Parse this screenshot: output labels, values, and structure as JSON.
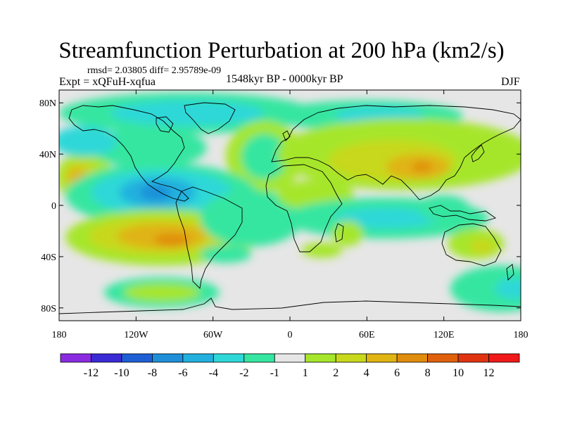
{
  "title": "Streamfunction Perturbation at 200 hPa (km2/s)",
  "stats": {
    "rmsd_line": "rmsd= 2.03805 diff= 2.95789e-09"
  },
  "experiment": "Expt = xQFuH-xqfua",
  "period": "1548kyr BP - 0000kyr BP",
  "season": "DJF",
  "axes": {
    "y_ticks": [
      {
        "label": "80N",
        "lat": 80
      },
      {
        "label": "40N",
        "lat": 40
      },
      {
        "label": "0",
        "lat": 0
      },
      {
        "label": "40S",
        "lat": -40
      },
      {
        "label": "80S",
        "lat": -80
      }
    ],
    "x_ticks": [
      {
        "label": "180",
        "lon": -180
      },
      {
        "label": "120W",
        "lon": -120
      },
      {
        "label": "60W",
        "lon": -60
      },
      {
        "label": "0",
        "lon": 0
      },
      {
        "label": "60E",
        "lon": 60
      },
      {
        "label": "120E",
        "lon": 120
      },
      {
        "label": "180",
        "lon": 180
      }
    ]
  },
  "colorbar": {
    "labels": [
      "-12",
      "-10",
      "-8",
      "-6",
      "-4",
      "-2",
      "-1",
      "1",
      "2",
      "4",
      "6",
      "8",
      "10",
      "12"
    ],
    "colors": [
      "#8a2be2",
      "#3a2ad6",
      "#1f5fd6",
      "#1e8fd8",
      "#22b0de",
      "#2fd8d8",
      "#35e6a0",
      "#e6e6e6",
      "#a6e62b",
      "#c8d81a",
      "#e0b412",
      "#e08c0c",
      "#e0600c",
      "#e03410",
      "#f01818"
    ]
  },
  "map_data": {
    "projection": "equirectangular",
    "lon_range": [
      -180,
      180
    ],
    "lat_range": [
      -90,
      90
    ],
    "background_color": "#e6e6e6",
    "fields": [
      {
        "color": "#a6e62b",
        "lon": -160,
        "lat": 22,
        "rlon": 22,
        "rlat": 20
      },
      {
        "color": "#c8d81a",
        "lon": -163,
        "lat": 22,
        "rlon": 14,
        "rlat": 13
      },
      {
        "color": "#e0b412",
        "lon": -166,
        "lat": 22,
        "rlon": 7,
        "rlat": 7
      },
      {
        "color": "#35e6a0",
        "lon": -80,
        "lat": 72,
        "rlon": 100,
        "rlat": 16
      },
      {
        "color": "#2fd8d8",
        "lon": -80,
        "lat": 72,
        "rlon": 60,
        "rlat": 10
      },
      {
        "color": "#35e6a0",
        "lon": -110,
        "lat": 45,
        "rlon": 45,
        "rlat": 16
      },
      {
        "color": "#2fd8d8",
        "lon": -160,
        "lat": 50,
        "rlon": 25,
        "rlat": 12
      },
      {
        "color": "#a6e62b",
        "lon": -20,
        "lat": 38,
        "rlon": 30,
        "rlat": 28
      },
      {
        "color": "#35e6a0",
        "lon": -20,
        "lat": 38,
        "rlon": 18,
        "rlat": 18
      },
      {
        "color": "#35e6a0",
        "lon": -100,
        "lat": 8,
        "rlon": 75,
        "rlat": 25
      },
      {
        "color": "#2fd8d8",
        "lon": -100,
        "lat": 10,
        "rlon": 55,
        "rlat": 18
      },
      {
        "color": "#22b0de",
        "lon": -103,
        "lat": 10,
        "rlon": 30,
        "rlat": 12
      },
      {
        "color": "#1e8fd8",
        "lon": -105,
        "lat": 10,
        "rlon": 12,
        "rlat": 6
      },
      {
        "color": "#a6e62b",
        "lon": -100,
        "lat": -25,
        "rlon": 75,
        "rlat": 22
      },
      {
        "color": "#c8d81a",
        "lon": -102,
        "lat": -24,
        "rlon": 55,
        "rlat": 15
      },
      {
        "color": "#e0b412",
        "lon": -100,
        "lat": -24,
        "rlon": 35,
        "rlat": 10
      },
      {
        "color": "#e08c0c",
        "lon": -92,
        "lat": -27,
        "rlon": 14,
        "rlat": 5
      },
      {
        "color": "#35e6a0",
        "lon": -30,
        "lat": -10,
        "rlon": 40,
        "rlat": 22
      },
      {
        "color": "#a6e62b",
        "lon": 20,
        "lat": 8,
        "rlon": 30,
        "rlat": 12
      },
      {
        "color": "#35e6a0",
        "lon": 60,
        "lat": 70,
        "rlon": 75,
        "rlat": 12
      },
      {
        "color": "#2fd8d8",
        "lon": 70,
        "lat": 70,
        "rlon": 35,
        "rlat": 7
      },
      {
        "color": "#a6e62b",
        "lon": 90,
        "lat": 40,
        "rlon": 100,
        "rlat": 28
      },
      {
        "color": "#c8d81a",
        "lon": 80,
        "lat": 35,
        "rlon": 50,
        "rlat": 16
      },
      {
        "color": "#e0b412",
        "lon": 100,
        "lat": 30,
        "rlon": 25,
        "rlat": 10
      },
      {
        "color": "#e08c0c",
        "lon": 103,
        "lat": 30,
        "rlon": 8,
        "rlat": 4
      },
      {
        "color": "#35e6a0",
        "lon": 75,
        "lat": -10,
        "rlon": 80,
        "rlat": 16
      },
      {
        "color": "#2fd8d8",
        "lon": 75,
        "lat": -10,
        "rlon": 40,
        "rlat": 8
      },
      {
        "color": "#35e6a0",
        "lon": 120,
        "lat": -2,
        "rlon": 20,
        "rlat": 10
      },
      {
        "color": "#a6e62b",
        "lon": 45,
        "lat": -22,
        "rlon": 12,
        "rlat": 10
      },
      {
        "color": "#35e6a0",
        "lon": -50,
        "lat": -38,
        "rlon": 20,
        "rlat": 7
      },
      {
        "color": "#a6e62b",
        "lon": 25,
        "lat": -35,
        "rlon": 16,
        "rlat": 6
      },
      {
        "color": "#a6e62b",
        "lon": 145,
        "lat": -30,
        "rlon": 22,
        "rlat": 12
      },
      {
        "color": "#c8d81a",
        "lon": 150,
        "lat": -32,
        "rlon": 10,
        "rlat": 6
      },
      {
        "color": "#35e6a0",
        "lon": -100,
        "lat": -68,
        "rlon": 45,
        "rlat": 12
      },
      {
        "color": "#a6e62b",
        "lon": -100,
        "lat": -68,
        "rlon": 30,
        "rlat": 7
      },
      {
        "color": "#35e6a0",
        "lon": 165,
        "lat": -65,
        "rlon": 40,
        "rlat": 18
      },
      {
        "color": "#2fd8d8",
        "lon": 175,
        "lat": -65,
        "rlon": 15,
        "rlat": 8
      }
    ]
  }
}
